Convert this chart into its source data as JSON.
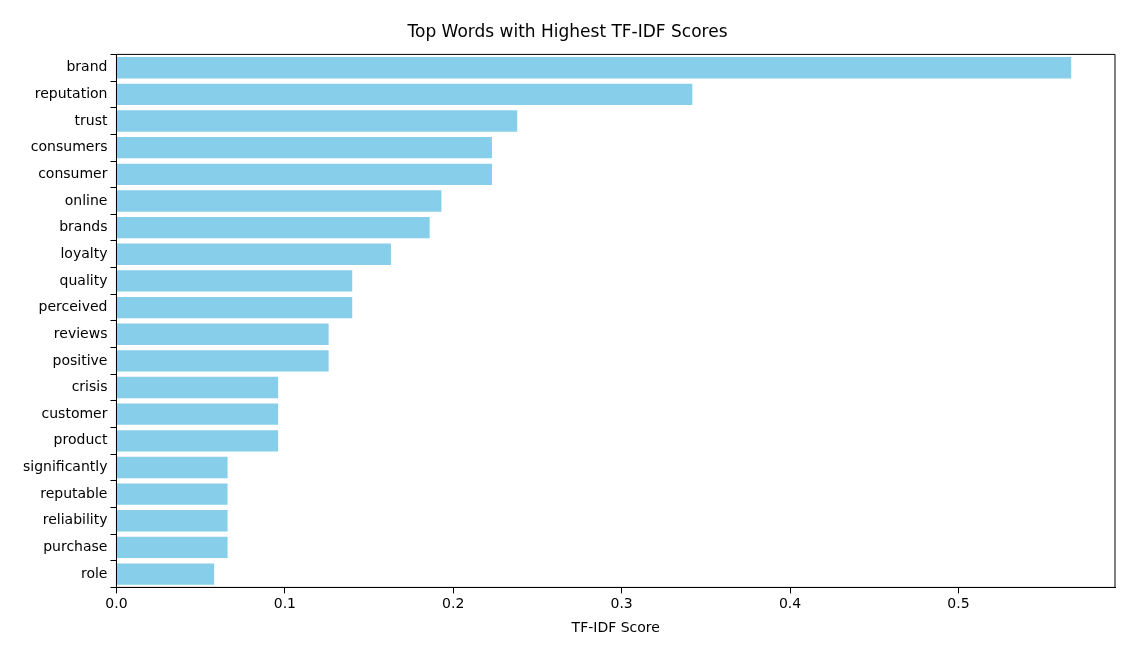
{
  "chart_data": {
    "type": "bar",
    "orientation": "horizontal",
    "title": "Top Words with Highest TF-IDF Scores",
    "xlabel": "TF-IDF Score",
    "categories": [
      "brand",
      "reputation",
      "trust",
      "consumers",
      "consumer",
      "online",
      "brands",
      "loyalty",
      "quality",
      "perceived",
      "reviews",
      "positive",
      "crisis",
      "customer",
      "product",
      "significantly",
      "reputable",
      "reliability",
      "purchase",
      "role"
    ],
    "values": [
      0.567,
      0.342,
      0.238,
      0.223,
      0.223,
      0.193,
      0.186,
      0.163,
      0.14,
      0.14,
      0.126,
      0.126,
      0.096,
      0.096,
      0.096,
      0.066,
      0.066,
      0.066,
      0.066,
      0.058
    ],
    "color": "#87ceeb",
    "xlim": [
      0,
      0.593
    ],
    "xticks": [
      {
        "value": 0,
        "label": "0.0"
      },
      {
        "value": 0.1,
        "label": "0.1"
      },
      {
        "value": 0.2,
        "label": "0.2"
      },
      {
        "value": 0.3,
        "label": "0.3"
      },
      {
        "value": 0.4,
        "label": "0.4"
      },
      {
        "value": 0.5,
        "label": "0.5"
      }
    ],
    "grid": false,
    "legend": false
  }
}
